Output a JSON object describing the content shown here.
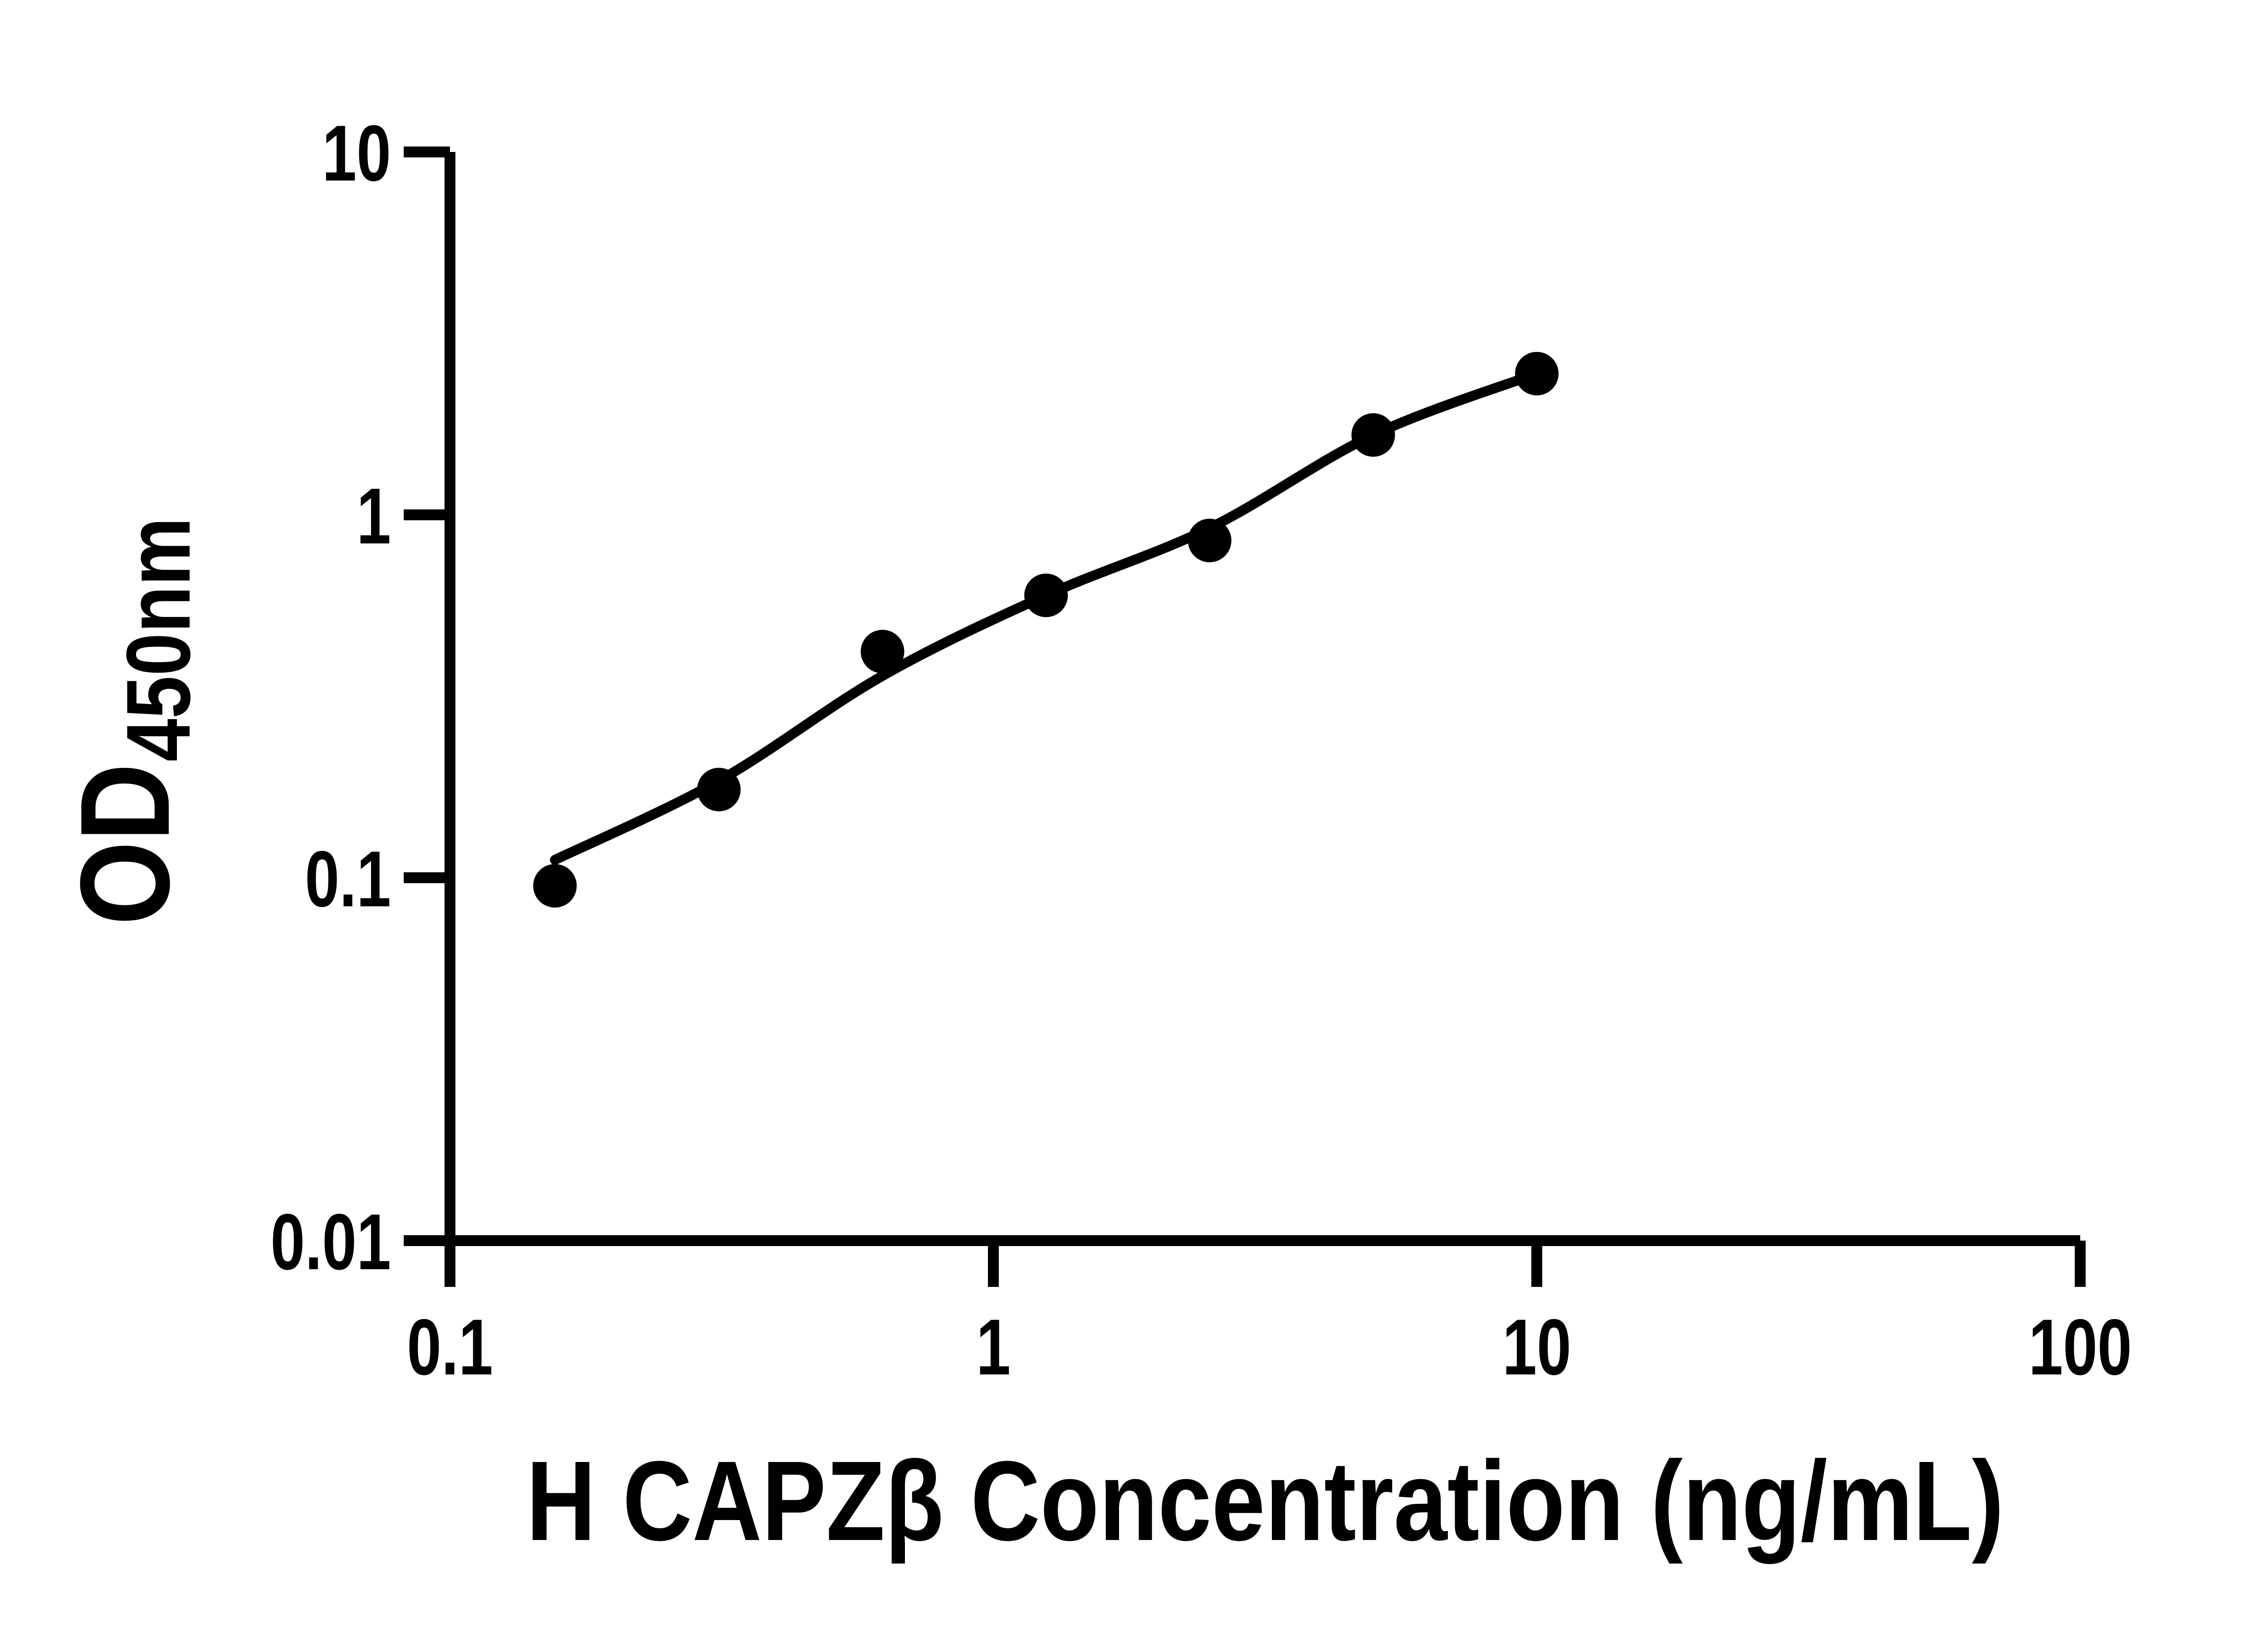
{
  "figure": {
    "background_color": "#ffffff",
    "ink_color": "#000000"
  },
  "chart_data": {
    "type": "scatter",
    "title": "",
    "xlabel": "H CAPZβ Concentration (ng/mL)",
    "ylabel": "OD",
    "ylabel_subscript": "450nm",
    "x_scale": "log10",
    "y_scale": "log10",
    "xlim": [
      0.1,
      100
    ],
    "ylim": [
      0.01,
      10
    ],
    "x_ticks": [
      0.1,
      1,
      10,
      100
    ],
    "x_tick_labels": [
      "0.1",
      "1",
      "10",
      "100"
    ],
    "y_ticks": [
      0.01,
      0.1,
      1,
      10
    ],
    "y_tick_labels": [
      "0.01",
      "0.1",
      "1",
      "10"
    ],
    "grid": false,
    "legend": "none",
    "marker_color": "#000000",
    "line_color": "#000000",
    "series": [
      {
        "name": "standard-curve-points",
        "marker": "filled-circle",
        "points": [
          {
            "x": 0.156,
            "y": 0.095
          },
          {
            "x": 0.3125,
            "y": 0.175
          },
          {
            "x": 0.625,
            "y": 0.42
          },
          {
            "x": 1.25,
            "y": 0.6
          },
          {
            "x": 2.5,
            "y": 0.85
          },
          {
            "x": 5,
            "y": 1.66
          },
          {
            "x": 10,
            "y": 2.45
          }
        ]
      }
    ],
    "fit_line": {
      "name": "4pl-fit-curve",
      "anchors": [
        {
          "x": 0.156,
          "y": 0.112
        },
        {
          "x": 0.3125,
          "y": 0.185
        },
        {
          "x": 0.625,
          "y": 0.36
        },
        {
          "x": 1.25,
          "y": 0.6
        },
        {
          "x": 2.5,
          "y": 0.92
        },
        {
          "x": 5,
          "y": 1.66
        },
        {
          "x": 10,
          "y": 2.45
        }
      ]
    }
  }
}
